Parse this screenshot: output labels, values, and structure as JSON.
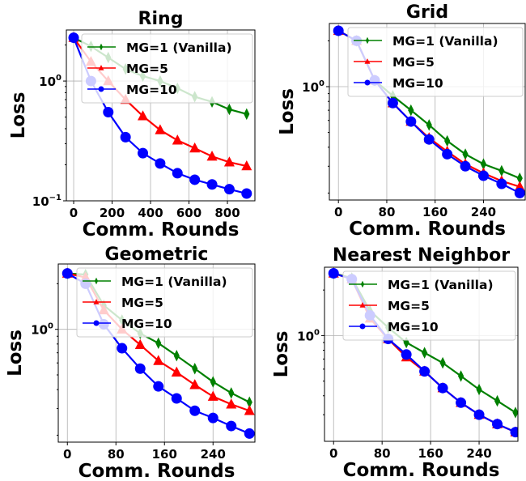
{
  "chart_data": [
    {
      "type": "line",
      "title": "Ring",
      "xlabel": "Comm. Rounds",
      "ylabel": "Loss",
      "yscale": "log",
      "xlim": [
        -38,
        943
      ],
      "ylim": [
        0.1,
        2.67
      ],
      "xticks": [
        0,
        200,
        400,
        600,
        800
      ],
      "xtick_labels": [
        "0",
        "200",
        "400",
        "600",
        "800"
      ],
      "yticks": [
        1,
        0.1
      ],
      "ytick_labels": [
        {
          "base": "10",
          "exp": "0"
        },
        {
          "base": "10",
          "exp": "−1"
        }
      ],
      "grid": true,
      "legend": "top-right",
      "x": [
        0,
        90,
        180,
        270,
        360,
        450,
        540,
        630,
        720,
        810,
        900
      ],
      "series": [
        {
          "name": "MG=1 (Vanilla)",
          "color": "#008000",
          "marker": "diamond",
          "values": [
            2.3,
            1.95,
            1.57,
            1.26,
            1.1,
            1.0,
            0.87,
            0.74,
            0.67,
            0.58,
            0.53
          ]
        },
        {
          "name": "MG=5",
          "color": "#ff0000",
          "marker": "triangle",
          "values": [
            2.3,
            1.45,
            1.0,
            0.7,
            0.51,
            0.39,
            0.32,
            0.275,
            0.235,
            0.21,
            0.195
          ]
        },
        {
          "name": "MG=10",
          "color": "#0000ff",
          "marker": "circle",
          "values": [
            2.3,
            1.0,
            0.55,
            0.34,
            0.25,
            0.205,
            0.17,
            0.15,
            0.137,
            0.125,
            0.115
          ]
        }
      ]
    },
    {
      "type": "line",
      "title": "Grid",
      "xlabel": "Comm. Rounds",
      "ylabel": "Loss",
      "yscale": "log",
      "xlim": [
        -15,
        309
      ],
      "ylim": [
        0.18,
        2.6
      ],
      "xticks": [
        0,
        80,
        160,
        240
      ],
      "xtick_labels": [
        "0",
        "80",
        "160",
        "240"
      ],
      "yticks": [
        1
      ],
      "ytick_labels": [
        {
          "base": "10",
          "exp": "0"
        }
      ],
      "grid": true,
      "legend": "top-right",
      "x": [
        0,
        30,
        60,
        90,
        120,
        150,
        180,
        210,
        240,
        270,
        300
      ],
      "series": [
        {
          "name": "MG=1 (Vanilla)",
          "color": "#008000",
          "marker": "diamond",
          "values": [
            2.33,
            2.0,
            1.1,
            0.87,
            0.7,
            0.56,
            0.44,
            0.36,
            0.31,
            0.28,
            0.25
          ]
        },
        {
          "name": "MG=5",
          "color": "#ff0000",
          "marker": "triangle",
          "values": [
            2.33,
            2.0,
            1.1,
            0.78,
            0.59,
            0.46,
            0.375,
            0.31,
            0.27,
            0.24,
            0.22
          ]
        },
        {
          "name": "MG=10",
          "color": "#0000ff",
          "marker": "circle",
          "values": [
            2.33,
            2.0,
            1.1,
            0.78,
            0.59,
            0.45,
            0.36,
            0.3,
            0.26,
            0.23,
            0.2
          ]
        }
      ]
    },
    {
      "type": "line",
      "title": "Geometric",
      "xlabel": "Comm. Rounds",
      "ylabel": "Loss",
      "yscale": "log",
      "xlim": [
        -15,
        309
      ],
      "ylim": [
        0.18,
        2.7
      ],
      "xticks": [
        0,
        80,
        160,
        240
      ],
      "xtick_labels": [
        "0",
        "80",
        "160",
        "240"
      ],
      "yticks": [
        1
      ],
      "ytick_labels": [
        {
          "base": "10",
          "exp": "0"
        }
      ],
      "grid": true,
      "legend": "top-right",
      "x": [
        0,
        30,
        60,
        90,
        120,
        150,
        180,
        210,
        240,
        270,
        300
      ],
      "series": [
        {
          "name": "MG=1 (Vanilla)",
          "color": "#008000",
          "marker": "diamond",
          "values": [
            2.34,
            2.3,
            1.44,
            1.15,
            0.94,
            0.81,
            0.67,
            0.55,
            0.45,
            0.38,
            0.33
          ]
        },
        {
          "name": "MG=5",
          "color": "#ff0000",
          "marker": "triangle",
          "values": [
            2.34,
            2.2,
            1.34,
            1.0,
            0.79,
            0.62,
            0.52,
            0.43,
            0.36,
            0.32,
            0.29
          ]
        },
        {
          "name": "MG=10",
          "color": "#0000ff",
          "marker": "circle",
          "values": [
            2.34,
            2.0,
            1.08,
            0.75,
            0.55,
            0.42,
            0.35,
            0.29,
            0.26,
            0.23,
            0.205
          ]
        }
      ]
    },
    {
      "type": "line",
      "title": "Nearest Neighbor",
      "xlabel": "Comm. Rounds",
      "ylabel": "Loss",
      "yscale": "log",
      "xlim": [
        -15,
        304
      ],
      "ylim": [
        0.2,
        2.83
      ],
      "xticks": [
        0,
        80,
        160,
        240
      ],
      "xtick_labels": [
        "0",
        "80",
        "160",
        "240"
      ],
      "yticks": [
        1
      ],
      "ytick_labels": [
        {
          "base": "10",
          "exp": "0"
        }
      ],
      "grid": true,
      "legend": "top-right",
      "x": [
        0,
        30,
        60,
        90,
        120,
        150,
        180,
        210,
        240,
        270,
        300
      ],
      "series": [
        {
          "name": "MG=1 (Vanilla)",
          "color": "#008000",
          "marker": "diamond",
          "values": [
            2.58,
            2.4,
            1.46,
            1.13,
            0.9,
            0.77,
            0.66,
            0.54,
            0.44,
            0.37,
            0.31
          ]
        },
        {
          "name": "MG=5",
          "color": "#ff0000",
          "marker": "triangle",
          "values": [
            2.58,
            2.36,
            1.3,
            0.95,
            0.72,
            0.58,
            0.45,
            0.36,
            0.3,
            0.26,
            0.23
          ]
        },
        {
          "name": "MG=10",
          "color": "#0000ff",
          "marker": "circle",
          "values": [
            2.58,
            2.36,
            1.36,
            0.95,
            0.75,
            0.58,
            0.45,
            0.36,
            0.3,
            0.26,
            0.23
          ]
        }
      ]
    }
  ]
}
